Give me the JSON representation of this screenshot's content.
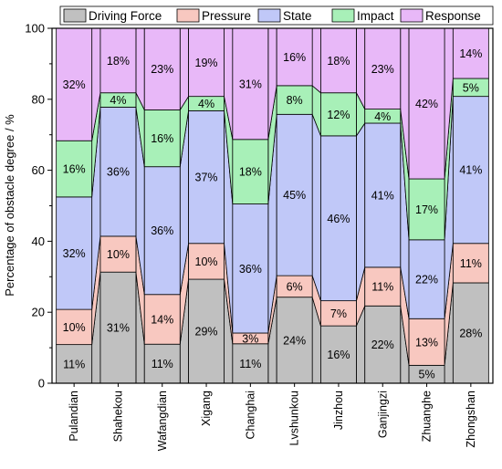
{
  "chart_data": {
    "type": "bar",
    "stacked": true,
    "bar_style": "stacked-percent-with-connectors",
    "ylabel": "Percentage of obstacle degree / %",
    "xlabel": "",
    "ylim": [
      0,
      100
    ],
    "yticks": [
      0,
      20,
      40,
      60,
      80,
      100
    ],
    "grid": false,
    "legend_position": "top",
    "categories": [
      "Pulandian",
      "Shahekou",
      "Wafangdian",
      "Xigang",
      "Changhai",
      "Lvshunkou",
      "Jinzhou",
      "Ganjingzi",
      "Zhuanghe",
      "Zhongshan"
    ],
    "series": [
      {
        "name": "Driving Force",
        "color": "#c0c0c0",
        "values": [
          11,
          31,
          11,
          29,
          11,
          24,
          16,
          22,
          5,
          28
        ],
        "labels": [
          "11%",
          "31%",
          "11%",
          "29%",
          "11%",
          "24%",
          "16%",
          "22%",
          "5%",
          "28%"
        ]
      },
      {
        "name": "Pressure",
        "color": "#f8c8c0",
        "values": [
          10,
          10,
          14,
          10,
          3,
          6,
          7,
          11,
          13,
          11
        ],
        "labels": [
          "10%",
          "10%",
          "14%",
          "10%",
          "3%",
          "6%",
          "7%",
          "11%",
          "13%",
          "11%"
        ]
      },
      {
        "name": "State",
        "color": "#c0c8f8",
        "values": [
          32,
          36,
          36,
          37,
          36,
          45,
          46,
          41,
          22,
          41
        ],
        "labels": [
          "32%",
          "36%",
          "36%",
          "37%",
          "36%",
          "45%",
          "46%",
          "41%",
          "22%",
          "41%"
        ]
      },
      {
        "name": "Impact",
        "color": "#a8f0b8",
        "values": [
          16,
          4,
          16,
          4,
          18,
          8,
          12,
          4,
          17,
          5
        ],
        "labels": [
          "16%",
          "4%",
          "16%",
          "4%",
          "18%",
          "8%",
          "12%",
          "4%",
          "17%",
          "5%"
        ]
      },
      {
        "name": "Response",
        "color": "#e8b8f8",
        "values": [
          32,
          18,
          23,
          19,
          31,
          16,
          18,
          23,
          42,
          14
        ],
        "labels": [
          "32%",
          "18%",
          "23%",
          "19%",
          "31%",
          "16%",
          "18%",
          "23%",
          "42%",
          "14%"
        ]
      }
    ]
  }
}
